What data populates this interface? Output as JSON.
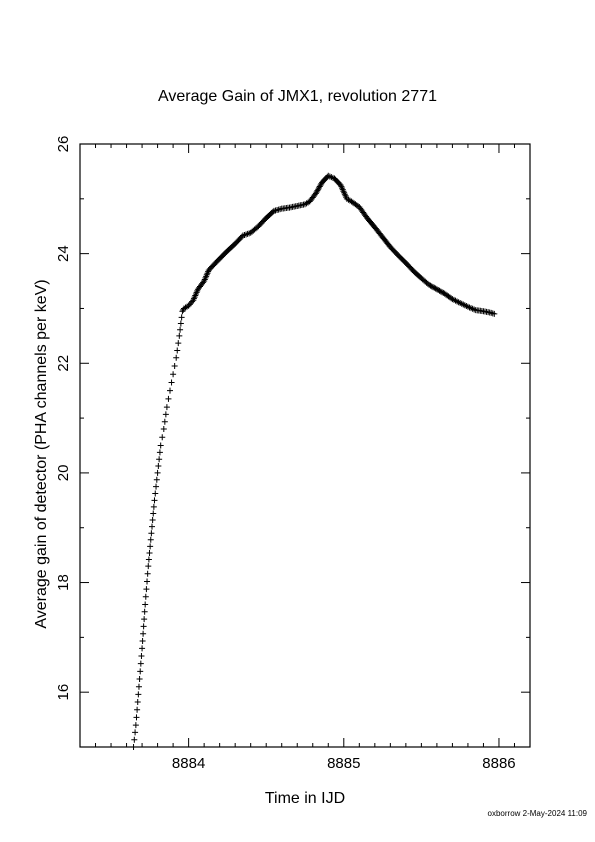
{
  "chart_data": {
    "type": "scatter",
    "title": "Average Gain of JMX1, revolution 2771",
    "xlabel": "Time in IJD",
    "ylabel": "Average gain of detector (PHA channels per keV)",
    "xlim": [
      8883.3,
      8886.2
    ],
    "ylim": [
      15.0,
      26.0
    ],
    "x_ticks": [
      8884,
      8885,
      8886
    ],
    "x_tick_labels": [
      "8884",
      "8885",
      "8886"
    ],
    "x_minor_step": 0.1,
    "y_ticks": [
      16,
      18,
      20,
      22,
      24,
      26
    ],
    "y_tick_labels": [
      "16",
      "18",
      "20",
      "22",
      "24",
      "26"
    ],
    "y_minor_step": 1,
    "grid": false,
    "marker": "+",
    "series": [
      {
        "points": [
          [
            8883.645,
            15.0
          ],
          [
            8883.66,
            15.4
          ],
          [
            8883.68,
            16.1
          ],
          [
            8883.7,
            16.8
          ],
          [
            8883.72,
            17.6
          ],
          [
            8883.74,
            18.3
          ],
          [
            8883.76,
            18.9
          ],
          [
            8883.78,
            19.5
          ],
          [
            8883.8,
            20.0
          ],
          [
            8883.82,
            20.5
          ],
          [
            8883.84,
            20.8
          ],
          [
            8883.86,
            21.2
          ],
          [
            8883.88,
            21.5
          ],
          [
            8883.9,
            21.8
          ],
          [
            8883.92,
            22.1
          ],
          [
            8883.94,
            22.5
          ],
          [
            8883.96,
            22.95
          ],
          [
            8883.97,
            23.0
          ],
          [
            8884.0,
            23.05
          ],
          [
            8884.03,
            23.15
          ],
          [
            8884.06,
            23.35
          ],
          [
            8884.1,
            23.5
          ],
          [
            8884.13,
            23.7
          ],
          [
            8884.18,
            23.85
          ],
          [
            8884.25,
            24.05
          ],
          [
            8884.3,
            24.18
          ],
          [
            8884.35,
            24.33
          ],
          [
            8884.4,
            24.38
          ],
          [
            8884.45,
            24.5
          ],
          [
            8884.5,
            24.65
          ],
          [
            8884.55,
            24.78
          ],
          [
            8884.6,
            24.82
          ],
          [
            8884.65,
            24.84
          ],
          [
            8884.7,
            24.87
          ],
          [
            8884.75,
            24.9
          ],
          [
            8884.78,
            24.95
          ],
          [
            8884.82,
            25.1
          ],
          [
            8884.86,
            25.3
          ],
          [
            8884.9,
            25.42
          ],
          [
            8884.94,
            25.37
          ],
          [
            8884.98,
            25.25
          ],
          [
            8885.02,
            25.0
          ],
          [
            8885.05,
            24.95
          ],
          [
            8885.1,
            24.85
          ],
          [
            8885.15,
            24.65
          ],
          [
            8885.2,
            24.48
          ],
          [
            8885.25,
            24.3
          ],
          [
            8885.3,
            24.12
          ],
          [
            8885.35,
            23.97
          ],
          [
            8885.4,
            23.83
          ],
          [
            8885.45,
            23.68
          ],
          [
            8885.5,
            23.55
          ],
          [
            8885.55,
            23.43
          ],
          [
            8885.6,
            23.35
          ],
          [
            8885.65,
            23.27
          ],
          [
            8885.7,
            23.17
          ],
          [
            8885.75,
            23.1
          ],
          [
            8885.8,
            23.03
          ],
          [
            8885.85,
            22.97
          ],
          [
            8885.9,
            22.95
          ],
          [
            8885.95,
            22.92
          ],
          [
            8885.97,
            22.9
          ]
        ]
      }
    ]
  },
  "footer": {
    "stamp": "oxborrow  2-May-2024 11:09"
  }
}
